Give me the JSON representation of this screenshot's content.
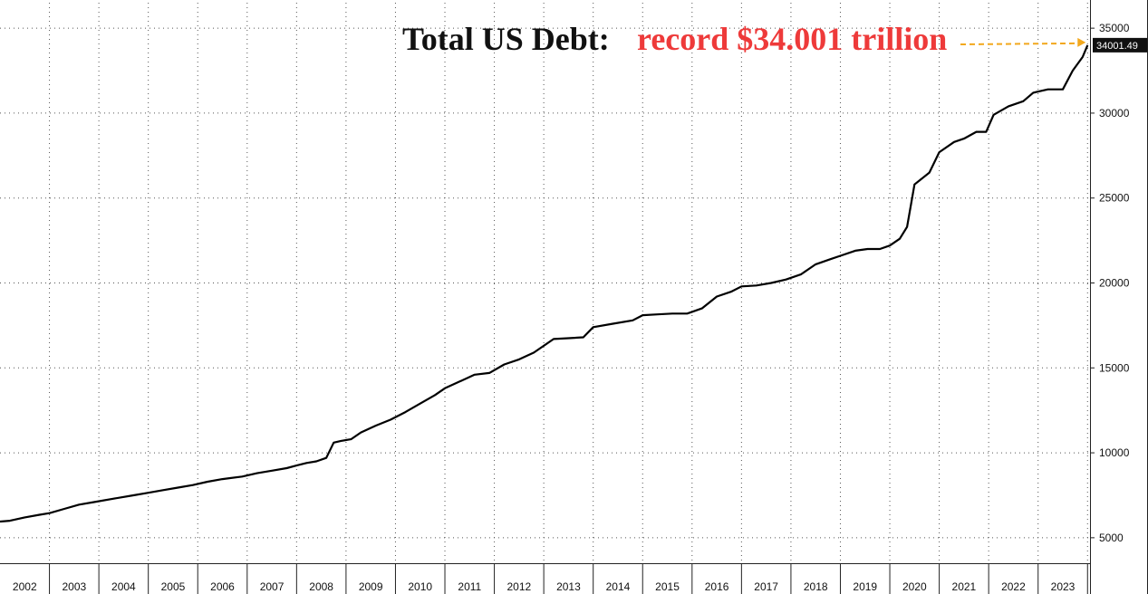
{
  "chart_data": {
    "type": "line",
    "title": "Total US Debt:",
    "title_highlight": "record $34.001 trillion",
    "xlabel": "",
    "ylabel": "",
    "x_tick_labels": [
      "2002",
      "2003",
      "2004",
      "2005",
      "2006",
      "2007",
      "2008",
      "2009",
      "2010",
      "2011",
      "2012",
      "2013",
      "2014",
      "2015",
      "2016",
      "2017",
      "2018",
      "2019",
      "2020",
      "2021",
      "2022",
      "2023"
    ],
    "y_tick_labels": [
      "5000",
      "10000",
      "15000",
      "20000",
      "25000",
      "30000",
      "35000"
    ],
    "y_ticks": [
      5000,
      10000,
      15000,
      20000,
      25000,
      30000,
      35000
    ],
    "xlim": [
      2002.0,
      2024.05
    ],
    "ylim": [
      3500,
      36500
    ],
    "y_axis_side": "right",
    "grid": true,
    "last_value_label": "34001.49",
    "colors": {
      "line": "#000000",
      "highlight": "#ee3a3a",
      "arrow": "#f2a81d",
      "label_bg": "#111111"
    },
    "series": [
      {
        "x": [
          2002.0,
          2002.2,
          2002.5,
          2002.8,
          2003.0,
          2003.3,
          2003.6,
          2003.9,
          2004.3,
          2004.7,
          2005.0,
          2005.3,
          2005.6,
          2005.9,
          2006.2,
          2006.5,
          2006.9,
          2007.2,
          2007.5,
          2007.8,
          2008.0,
          2008.2,
          2008.4,
          2008.6,
          2008.75,
          2008.9,
          2009.1,
          2009.3,
          2009.6,
          2009.9,
          2010.2,
          2010.5,
          2010.8,
          2011.0,
          2011.3,
          2011.6,
          2011.9,
          2012.2,
          2012.5,
          2012.8,
          2013.0,
          2013.2,
          2013.5,
          2013.8,
          2014.0,
          2014.4,
          2014.8,
          2015.0,
          2015.3,
          2015.6,
          2015.9,
          2016.2,
          2016.5,
          2016.8,
          2017.0,
          2017.3,
          2017.6,
          2017.9,
          2018.2,
          2018.5,
          2018.8,
          2019.0,
          2019.3,
          2019.55,
          2019.8,
          2020.0,
          2020.2,
          2020.35,
          2020.5,
          2020.8,
          2021.0,
          2021.3,
          2021.5,
          2021.75,
          2021.95,
          2022.1,
          2022.4,
          2022.7,
          2022.9,
          2023.2,
          2023.4,
          2023.5,
          2023.7,
          2023.9,
          2024.0
        ],
        "y": [
          5950,
          6000,
          6200,
          6350,
          6450,
          6700,
          6950,
          7100,
          7300,
          7500,
          7650,
          7800,
          7950,
          8100,
          8300,
          8450,
          8600,
          8800,
          8950,
          9100,
          9250,
          9400,
          9500,
          9700,
          10600,
          10700,
          10800,
          11200,
          11600,
          11950,
          12400,
          12900,
          13400,
          13800,
          14200,
          14600,
          14700,
          15200,
          15500,
          15900,
          16300,
          16700,
          16750,
          16800,
          17400,
          17600,
          17800,
          18100,
          18150,
          18200,
          18200,
          18500,
          19200,
          19500,
          19800,
          19850,
          20000,
          20200,
          20500,
          21100,
          21400,
          21600,
          21900,
          22000,
          22000,
          22200,
          22600,
          23300,
          25800,
          26500,
          27700,
          28300,
          28500,
          28900,
          28900,
          29900,
          30400,
          30700,
          31200,
          31400,
          31400,
          31400,
          32500,
          33300,
          34001
        ]
      }
    ]
  }
}
